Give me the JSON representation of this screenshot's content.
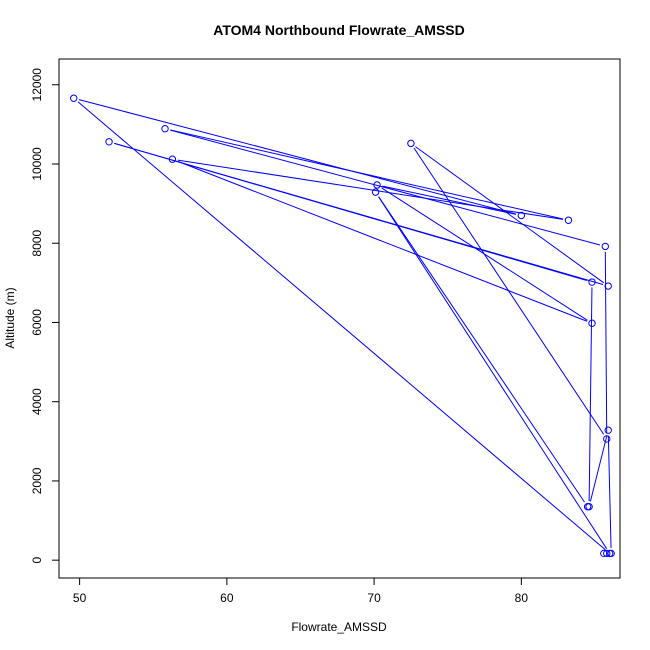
{
  "chart_data": {
    "type": "line",
    "title": "ATOM4 Northbound Flowrate_AMSSD",
    "xlabel": "Flowrate_AMSSD",
    "ylabel": "Altitude (m)",
    "xlim": [
      48.6,
      86.7
    ],
    "ylim": [
      -450,
      12650
    ],
    "xticks": [
      50,
      60,
      70,
      80
    ],
    "yticks": [
      0,
      2000,
      4000,
      6000,
      8000,
      10000,
      12000
    ],
    "grid": false,
    "legend": "none",
    "series": [
      {
        "color": "#0000ff",
        "marker": "open-circle",
        "x": [
          85.6,
          85.8,
          86.1,
          85.9,
          84.6,
          84.8,
          52.0,
          85.9,
          72.5,
          85.8,
          85.7,
          55.8,
          83.2,
          56.3,
          84.8,
          70.2,
          80.0,
          49.6,
          86.0,
          70.1,
          84.5
        ],
        "y": [
          170,
          170,
          170,
          3280,
          1350,
          7020,
          10560,
          6920,
          10520,
          3060,
          7920,
          10890,
          8580,
          10120,
          5980,
          9470,
          8700,
          11660,
          170,
          9290,
          1350
        ]
      }
    ]
  }
}
